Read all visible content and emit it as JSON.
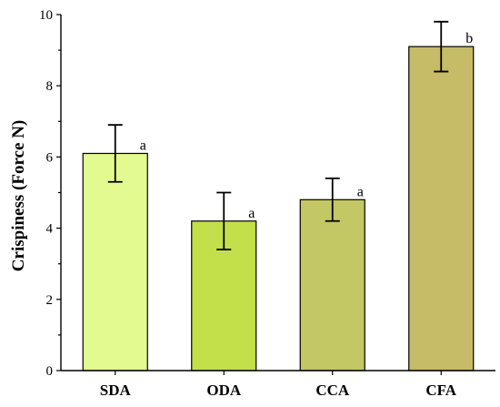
{
  "chart_data": {
    "type": "bar",
    "categories": [
      "SDA",
      "ODA",
      "CCA",
      "CFA"
    ],
    "values": [
      6.1,
      4.2,
      4.8,
      9.1
    ],
    "errors": [
      0.8,
      0.8,
      0.6,
      0.7
    ],
    "significance": [
      "a",
      "a",
      "a",
      "b"
    ],
    "colors": [
      "#e2fa8f",
      "#c3df4a",
      "#c3c764",
      "#c6bb66"
    ],
    "ylabel": "Crispiness (Force N)",
    "xlabel": "",
    "ylim": [
      0,
      10
    ],
    "yticks": [
      0,
      2,
      4,
      6,
      8,
      10
    ],
    "grid": false,
    "legend": false
  }
}
